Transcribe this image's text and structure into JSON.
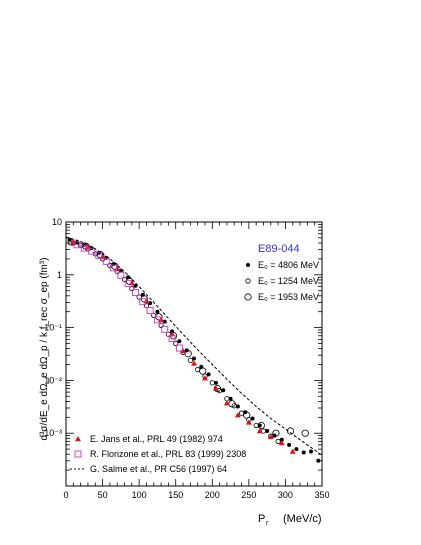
{
  "chart_data": {
    "type": "scatter",
    "title": "E89-044",
    "title_color": "#3333cc",
    "xlabel": "P",
    "xlabel_sub": "r",
    "xlabel_unit": "(MeV/c)",
    "ylabel": "d³σ/dE_e dΩ_e dΩ_p / k f_rec σ_ep (fm³)",
    "xlim": [
      0,
      350
    ],
    "ylim": [
      0.0001,
      10
    ],
    "yscale": "log",
    "x_ticks": [
      "0",
      "50",
      "100",
      "150",
      "200",
      "250",
      "300",
      "350"
    ],
    "y_ticks": [
      "10⁻³",
      "10⁻²",
      "10⁻¹",
      "1",
      "10"
    ],
    "series": [
      {
        "name": "E₀ = 4806 MeV",
        "marker": "filled-circle",
        "color": "#000000",
        "points": [
          [
            5,
            4.6
          ],
          [
            15,
            4.1
          ],
          [
            25,
            3.7
          ],
          [
            35,
            3.2
          ],
          [
            45,
            2.6
          ],
          [
            55,
            2.1
          ],
          [
            65,
            1.6
          ],
          [
            75,
            1.2
          ],
          [
            85,
            0.9
          ],
          [
            95,
            0.62
          ],
          [
            105,
            0.42
          ],
          [
            115,
            0.29
          ],
          [
            125,
            0.2
          ],
          [
            135,
            0.13
          ],
          [
            145,
            0.085
          ],
          [
            155,
            0.055
          ],
          [
            165,
            0.037
          ],
          [
            175,
            0.026
          ],
          [
            185,
            0.018
          ],
          [
            195,
            0.013
          ],
          [
            205,
            0.009
          ],
          [
            215,
            0.0065
          ],
          [
            225,
            0.0045
          ],
          [
            235,
            0.0032
          ],
          [
            245,
            0.0025
          ],
          [
            255,
            0.0019
          ],
          [
            265,
            0.0014
          ],
          [
            275,
            0.0011
          ],
          [
            285,
            0.0009
          ],
          [
            295,
            0.00075
          ],
          [
            305,
            0.0006
          ],
          [
            315,
            0.0005
          ],
          [
            325,
            0.00043
          ],
          [
            335,
            0.00045
          ],
          [
            345,
            0.0003
          ]
        ]
      },
      {
        "name": "E₀ = 1254 MeV",
        "marker": "open-circle-small",
        "color": "#000000",
        "points": [
          [
            10,
            4.0
          ],
          [
            20,
            3.6
          ],
          [
            30,
            3.1
          ],
          [
            40,
            2.5
          ],
          [
            50,
            2.0
          ],
          [
            60,
            1.5
          ],
          [
            70,
            1.15
          ],
          [
            80,
            0.82
          ],
          [
            90,
            0.55
          ],
          [
            100,
            0.38
          ],
          [
            110,
            0.26
          ],
          [
            120,
            0.17
          ],
          [
            130,
            0.11
          ],
          [
            140,
            0.075
          ],
          [
            150,
            0.05
          ],
          [
            160,
            0.034
          ],
          [
            170,
            0.024
          ],
          [
            180,
            0.016
          ],
          [
            190,
            0.012
          ],
          [
            200,
            0.009
          ],
          [
            210,
            0.0064
          ],
          [
            220,
            0.0045
          ],
          [
            230,
            0.0033
          ],
          [
            240,
            0.0024
          ],
          [
            250,
            0.0018
          ],
          [
            260,
            0.0014
          ],
          [
            270,
            0.0011
          ],
          [
            280,
            0.00088
          ],
          [
            290,
            0.0007
          ]
        ]
      },
      {
        "name": "E₀ = 1953 MeV",
        "marker": "open-circle-large",
        "color": "#000000",
        "points": [
          [
            7,
            4.2
          ],
          [
            27,
            3.5
          ],
          [
            47,
            2.4
          ],
          [
            67,
            1.45
          ],
          [
            87,
            0.75
          ],
          [
            107,
            0.35
          ],
          [
            127,
            0.16
          ],
          [
            147,
            0.07
          ],
          [
            167,
            0.032
          ],
          [
            187,
            0.015
          ],
          [
            207,
            0.007
          ],
          [
            227,
            0.0036
          ],
          [
            247,
            0.0022
          ],
          [
            267,
            0.0014
          ],
          [
            287,
            0.001
          ],
          [
            307,
            0.0011
          ],
          [
            327,
            0.001
          ]
        ]
      },
      {
        "name": "E. Jans et al., PRL 49 (1982) 974",
        "marker": "filled-triangle",
        "color": "#dd1111",
        "points": [
          [
            10,
            4.2
          ],
          [
            30,
            3.4
          ],
          [
            50,
            2.2
          ],
          [
            70,
            1.3
          ],
          [
            90,
            0.7
          ],
          [
            110,
            0.32
          ],
          [
            130,
            0.14
          ],
          [
            145,
            0.075
          ],
          [
            160,
            0.036
          ],
          [
            175,
            0.021
          ],
          [
            190,
            0.011
          ],
          [
            205,
            0.007
          ],
          [
            220,
            0.0037
          ],
          [
            235,
            0.0022
          ],
          [
            250,
            0.0016
          ],
          [
            265,
            0.0011
          ],
          [
            280,
            0.00085
          ],
          [
            295,
            0.00065
          ],
          [
            310,
            0.00045
          ]
        ]
      },
      {
        "name": "R. Florizone et al., PRL 83 (1999) 2308",
        "marker": "open-square",
        "color": "#cc33cc",
        "points": [
          [
            15,
            3.7
          ],
          [
            25,
            3.2
          ],
          [
            35,
            2.8
          ],
          [
            45,
            2.3
          ],
          [
            55,
            1.8
          ],
          [
            65,
            1.35
          ],
          [
            75,
            0.98
          ],
          [
            85,
            0.68
          ],
          [
            95,
            0.46
          ],
          [
            105,
            0.31
          ],
          [
            115,
            0.21
          ],
          [
            125,
            0.14
          ],
          [
            135,
            0.093
          ],
          [
            145,
            0.062
          ],
          [
            155,
            0.041
          ]
        ]
      },
      {
        "name": "G. Salme et al., PR C56 (1997) 64",
        "marker": "dashed-line",
        "color": "#000000",
        "points": [
          [
            0,
            5.2
          ],
          [
            20,
            4.3
          ],
          [
            40,
            3.1
          ],
          [
            60,
            2.0
          ],
          [
            80,
            1.15
          ],
          [
            100,
            0.6
          ],
          [
            120,
            0.3
          ],
          [
            140,
            0.15
          ],
          [
            160,
            0.075
          ],
          [
            180,
            0.038
          ],
          [
            200,
            0.02
          ],
          [
            220,
            0.0105
          ],
          [
            240,
            0.0057
          ],
          [
            260,
            0.0032
          ],
          [
            280,
            0.0019
          ],
          [
            300,
            0.0012
          ],
          [
            320,
            0.00075
          ],
          [
            340,
            0.00048
          ],
          [
            350,
            0.00038
          ]
        ]
      }
    ]
  }
}
